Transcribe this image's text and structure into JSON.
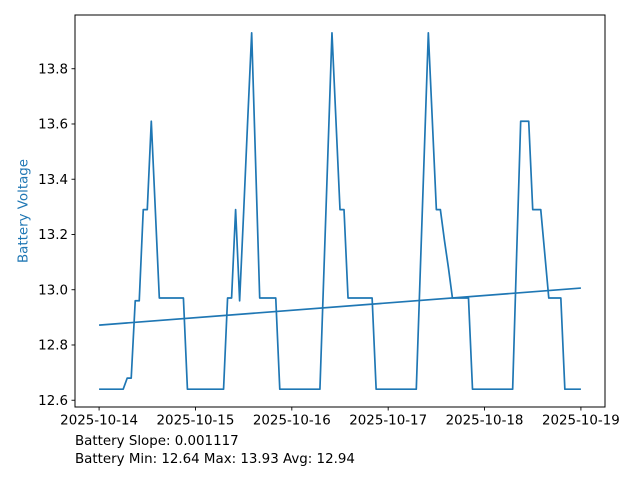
{
  "chart_data": {
    "type": "line",
    "title": "",
    "xlabel": "",
    "ylabel": "Battery Voltage",
    "ylabel_color": "#1f77b4",
    "line_color": "#1f77b4",
    "grid": false,
    "legend": "none",
    "xlim_days": [
      -0.25,
      5.25
    ],
    "ylim": [
      12.5755,
      13.9945
    ],
    "y_ticks": [
      12.6,
      12.8,
      13.0,
      13.2,
      13.4,
      13.6,
      13.8
    ],
    "x_tick_days": [
      0,
      1,
      2,
      3,
      4,
      5
    ],
    "x_tick_labels": [
      "2025-10-14",
      "2025-10-15",
      "2025-10-16",
      "2025-10-17",
      "2025-10-18",
      "2025-10-19"
    ],
    "voltage_series": {
      "name": "battery-voltage",
      "start": "2025-10-14 00:00",
      "interval_hours": 1,
      "values": [
        12.64,
        12.64,
        12.64,
        12.64,
        12.64,
        12.64,
        12.64,
        12.68,
        12.68,
        12.96,
        12.96,
        13.29,
        13.29,
        13.61,
        13.29,
        12.97,
        12.97,
        12.97,
        12.97,
        12.97,
        12.97,
        12.97,
        12.64,
        12.64,
        12.64,
        12.64,
        12.64,
        12.64,
        12.64,
        12.64,
        12.64,
        12.64,
        12.97,
        12.97,
        13.29,
        12.96,
        13.28,
        13.61,
        13.93,
        13.45,
        12.97,
        12.97,
        12.97,
        12.97,
        12.97,
        12.64,
        12.64,
        12.64,
        12.64,
        12.64,
        12.64,
        12.64,
        12.64,
        12.64,
        12.64,
        12.64,
        13.07,
        13.5,
        13.93,
        13.61,
        13.29,
        13.29,
        12.97,
        12.97,
        12.97,
        12.97,
        12.97,
        12.97,
        12.97,
        12.64,
        12.64,
        12.64,
        12.64,
        12.64,
        12.64,
        12.64,
        12.64,
        12.64,
        12.64,
        12.64,
        13.07,
        13.5,
        13.93,
        13.61,
        13.29,
        13.29,
        13.18,
        13.08,
        12.97,
        12.97,
        12.97,
        12.97,
        12.97,
        12.64,
        12.64,
        12.64,
        12.64,
        12.64,
        12.64,
        12.64,
        12.64,
        12.64,
        12.64,
        12.64,
        13.13,
        13.61,
        13.61,
        13.61,
        13.29,
        13.29,
        13.29,
        13.13,
        12.97,
        12.97,
        12.97,
        12.97,
        12.64,
        12.64,
        12.64,
        12.64,
        12.64
      ]
    },
    "trend_line": {
      "name": "battery-trend",
      "x_hours": [
        0,
        120
      ],
      "values": [
        12.872,
        13.006
      ]
    },
    "annotations": [
      "Battery Slope: 0.001117",
      "Battery Min: 12.64 Max: 13.93 Avg: 12.94"
    ],
    "stats": {
      "slope": "0.001117",
      "min": "12.64",
      "max": "13.93",
      "avg": "12.94"
    }
  }
}
